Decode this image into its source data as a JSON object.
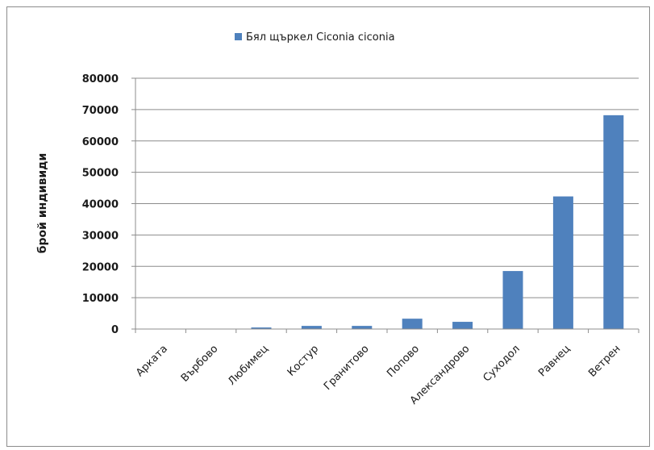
{
  "chart_data": {
    "type": "bar",
    "categories": [
      "Арката",
      "Върбово",
      "Любимец",
      "Костур",
      "Гранитово",
      "Попово",
      "Александрово",
      "Суходол",
      "Равнец",
      "Ветрен"
    ],
    "series": [
      {
        "name": "Бял щъркел Ciconia ciconia",
        "color": "#4f81bd",
        "values": [
          0,
          0,
          500,
          1000,
          1000,
          3300,
          2300,
          18500,
          42300,
          68200
        ]
      }
    ],
    "xlabel": "",
    "ylabel": "брой индивиди",
    "ylim": [
      0,
      80000
    ],
    "yticks": [
      0,
      10000,
      20000,
      30000,
      40000,
      50000,
      60000,
      70000,
      80000
    ],
    "grid": true,
    "legend": "top"
  }
}
